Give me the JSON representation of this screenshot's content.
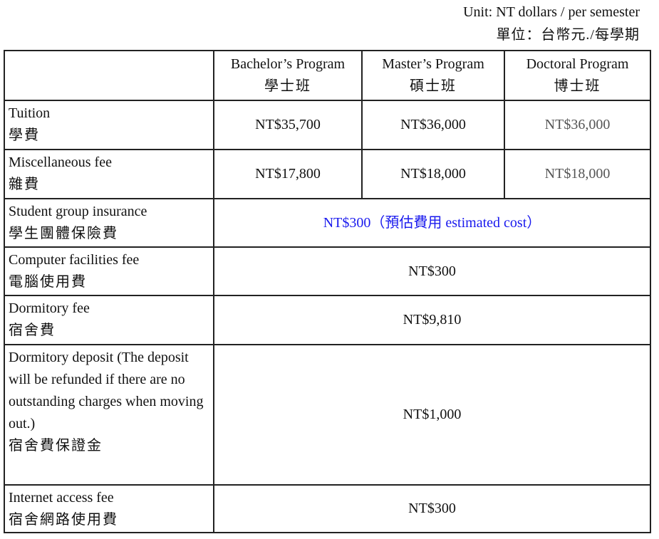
{
  "unit": {
    "en": "Unit: NT dollars / per semester",
    "zh": "單位：台幣元./每學期"
  },
  "colors": {
    "estimate_text": "#1a1aee",
    "doctoral_value": "#555555",
    "border": "#222222"
  },
  "header": [
    {
      "en": "Bachelor’s Program",
      "zh": "學士班"
    },
    {
      "en": "Master’s Program",
      "zh": "碩士班"
    },
    {
      "en": "Doctoral Program",
      "zh": "博士班"
    }
  ],
  "rows": [
    {
      "en": "Tuition",
      "zh": "學費",
      "values": [
        "NT$35,700",
        "NT$36,000",
        "NT$36,000"
      ]
    },
    {
      "en": "Miscellaneous fee",
      "zh": "雜費",
      "values": [
        "NT$17,800",
        "NT$18,000",
        "NT$18,000"
      ]
    },
    {
      "en": "Student group insurance",
      "zh": "學生團體保險費",
      "value": "NT$300（預估費用 estimated cost）"
    },
    {
      "en": "Computer facilities fee",
      "zh": "電腦使用費",
      "value": "NT$300"
    },
    {
      "en": "Dormitory fee",
      "zh": "宿舍費",
      "value": "NT$9,810"
    },
    {
      "en": "Dormitory deposit (The deposit will be refunded if there are no outstanding charges when moving out.)",
      "zh": "宿舍費保證金",
      "value": "NT$1,000"
    },
    {
      "en": "Internet access fee",
      "zh": "宿舍網路使用費",
      "value": "NT$300"
    }
  ]
}
